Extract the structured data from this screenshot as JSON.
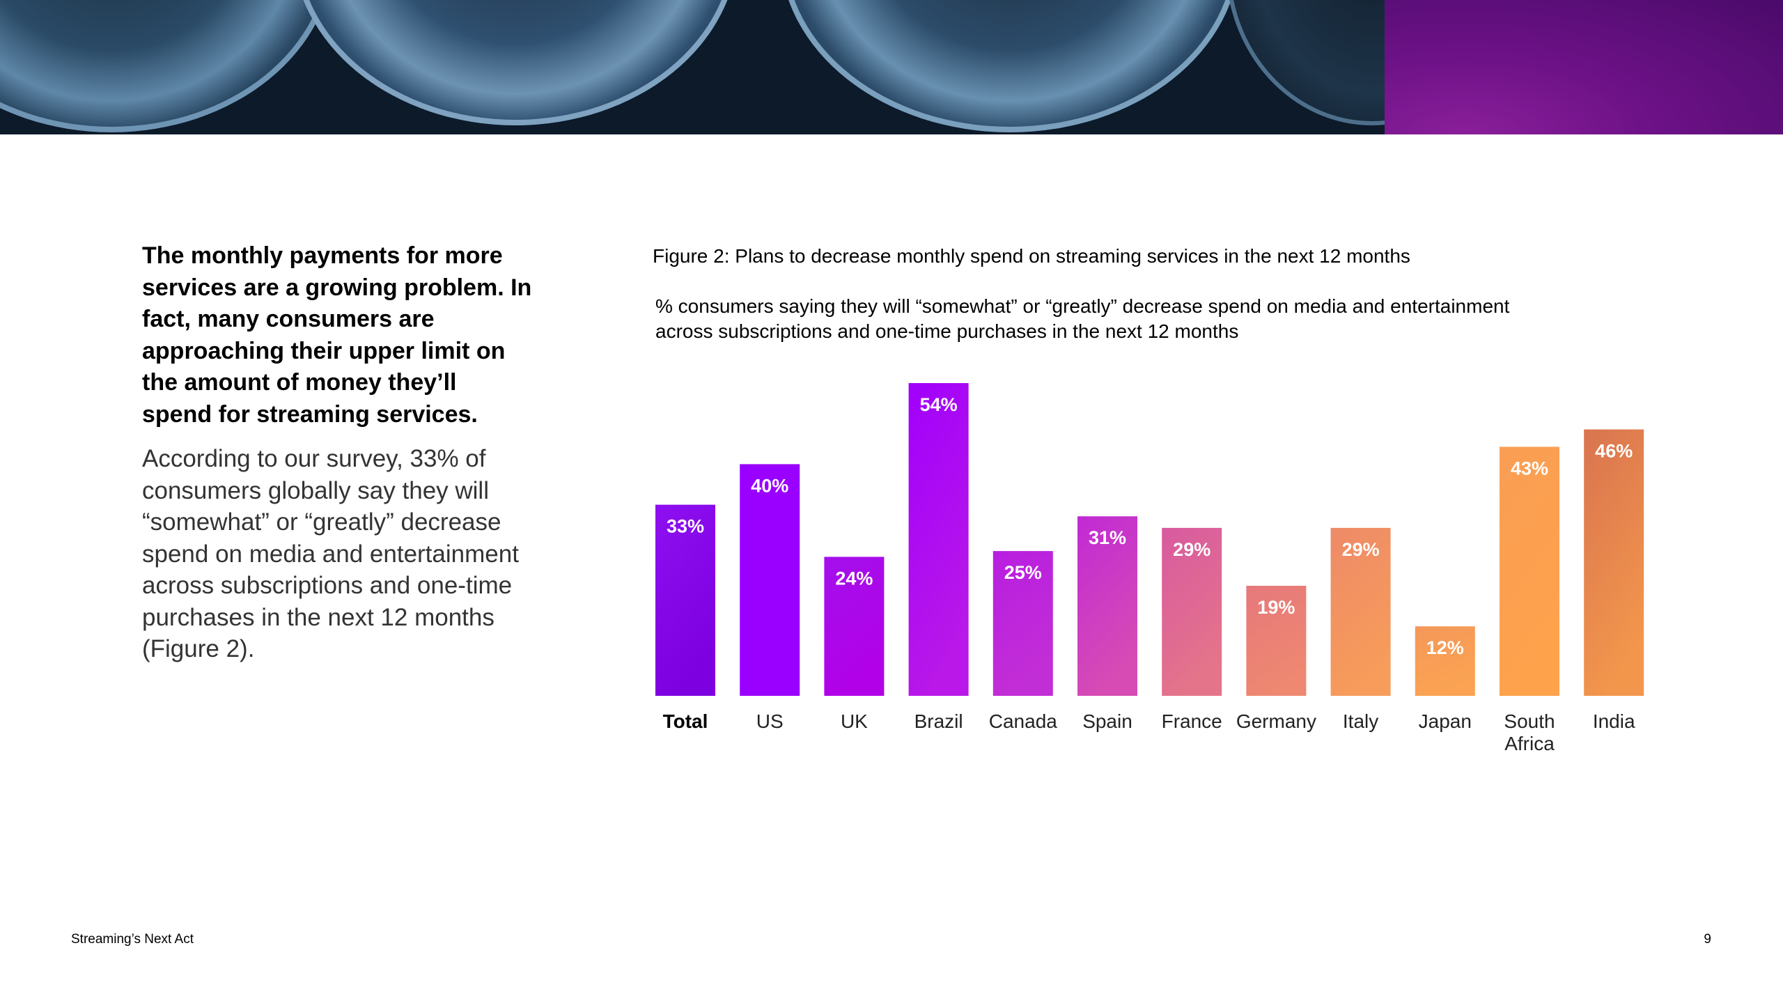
{
  "lead": "The monthly payments for more services are a growing problem. In fact, many consumers are approaching their upper limit on the amount of money they’ll spend for streaming services.",
  "body": "According to our survey, 33% of consumers globally say they will “somewhat” or “greatly” decrease spend on media and entertainment across subscriptions and one-time purchases in the next 12 months (Figure 2).",
  "footer": {
    "title": "Streaming’s Next Act",
    "page_number": "9"
  },
  "chart_data": {
    "type": "bar",
    "title": "Figure 2: Plans to decrease monthly spend on streaming services in the next 12 months",
    "subtitle": "% consumers saying they will “somewhat” or “greatly” decrease spend on media and entertainment across subscriptions and one-time purchases in the next 12 months",
    "categories": [
      "Total",
      "US",
      "UK",
      "Brazil",
      "Canada",
      "Spain",
      "France",
      "Germany",
      "Italy",
      "Japan",
      "South Africa",
      "India"
    ],
    "category_lines": [
      [
        "Total"
      ],
      [
        "US"
      ],
      [
        "UK"
      ],
      [
        "Brazil"
      ],
      [
        "Canada"
      ],
      [
        "Spain"
      ],
      [
        "France"
      ],
      [
        "Germany"
      ],
      [
        "Italy"
      ],
      [
        "Japan"
      ],
      [
        "South",
        "Africa"
      ],
      [
        "India"
      ]
    ],
    "values": [
      33,
      40,
      24,
      54,
      25,
      31,
      29,
      19,
      29,
      12,
      43,
      46
    ],
    "value_labels": [
      "33%",
      "40%",
      "24%",
      "54%",
      "25%",
      "31%",
      "29%",
      "19%",
      "29%",
      "12%",
      "43%",
      "46%"
    ],
    "highlight_category": "Total",
    "ylim": [
      0,
      54
    ],
    "grid": false,
    "legend": "none",
    "colors": [
      "#8e0ff0",
      "#9a00ff",
      "#a410ec",
      "#a100fc",
      "#b81ee0",
      "#c02ad4",
      "#d85aa0",
      "#e6787c",
      "#ee8a68",
      "#f4985a",
      "#f99e54",
      "#d97450"
    ],
    "colors_end": [
      "#7d00e0",
      "#9a00ff",
      "#b200e8",
      "#b918e8",
      "#c22ed6",
      "#d64cb4",
      "#e4748a",
      "#ee8870",
      "#f79c5a",
      "#fba352",
      "#ffa24c",
      "#f2964c"
    ]
  }
}
